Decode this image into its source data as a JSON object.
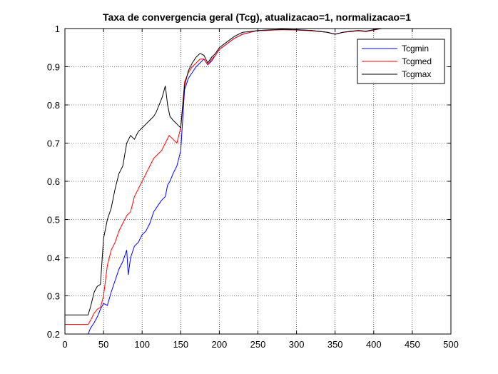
{
  "chart_data": {
    "type": "line",
    "title": "Taxa de convergencia geral (Tcg), atualizacao=1, normalizacao=1",
    "xlabel": "",
    "ylabel": "",
    "xlim": [
      0,
      500
    ],
    "ylim": [
      0.2,
      1
    ],
    "xticks": [
      0,
      50,
      100,
      150,
      200,
      250,
      300,
      350,
      400,
      450,
      500
    ],
    "yticks": [
      0.2,
      0.3,
      0.4,
      0.5,
      0.6,
      0.7,
      0.8,
      0.9,
      1
    ],
    "ytick_labels": [
      "0.2",
      "0.3",
      "0.4",
      "0.5",
      "0.6",
      "0.7",
      "0.8",
      "0.9",
      "1"
    ],
    "grid": "dotted",
    "legend_position": "top-right",
    "series": [
      {
        "name": "Tcgmin",
        "color": "#0000ff",
        "x": [
          0,
          30,
          33,
          38,
          42,
          46,
          50,
          55,
          60,
          65,
          70,
          75,
          80,
          82,
          85,
          90,
          95,
          100,
          105,
          110,
          115,
          120,
          125,
          130,
          133,
          136,
          140,
          145,
          150,
          155,
          160,
          165,
          170,
          175,
          180,
          185,
          190,
          195,
          200,
          210,
          220,
          230,
          240,
          250,
          260,
          280,
          300,
          320,
          340,
          350,
          360,
          370,
          380,
          390,
          400,
          410
        ],
        "y": [
          0.2,
          0.2,
          0.215,
          0.23,
          0.245,
          0.265,
          0.28,
          0.275,
          0.31,
          0.34,
          0.37,
          0.39,
          0.42,
          0.355,
          0.4,
          0.43,
          0.44,
          0.46,
          0.47,
          0.49,
          0.52,
          0.535,
          0.55,
          0.56,
          0.59,
          0.6,
          0.62,
          0.64,
          0.68,
          0.84,
          0.87,
          0.885,
          0.9,
          0.91,
          0.92,
          0.905,
          0.915,
          0.93,
          0.945,
          0.96,
          0.975,
          0.985,
          0.99,
          0.995,
          0.995,
          0.998,
          0.997,
          0.995,
          0.99,
          0.985,
          0.99,
          0.992,
          0.995,
          0.993,
          0.997,
          1.0
        ]
      },
      {
        "name": "Tcgmed",
        "color": "#ff0000",
        "x": [
          0,
          30,
          33,
          38,
          42,
          46,
          50,
          55,
          60,
          65,
          70,
          75,
          80,
          85,
          90,
          95,
          100,
          105,
          110,
          115,
          120,
          125,
          130,
          135,
          140,
          145,
          150,
          155,
          160,
          165,
          170,
          175,
          180,
          185,
          190,
          195,
          200,
          210,
          220,
          230,
          240,
          250,
          260,
          280,
          300,
          320,
          340,
          350,
          360,
          370,
          380,
          390,
          400,
          410
        ],
        "y": [
          0.225,
          0.225,
          0.235,
          0.255,
          0.265,
          0.27,
          0.3,
          0.38,
          0.42,
          0.44,
          0.47,
          0.49,
          0.51,
          0.52,
          0.56,
          0.58,
          0.6,
          0.62,
          0.64,
          0.66,
          0.67,
          0.68,
          0.7,
          0.72,
          0.71,
          0.7,
          0.74,
          0.86,
          0.885,
          0.9,
          0.91,
          0.92,
          0.92,
          0.905,
          0.92,
          0.93,
          0.945,
          0.96,
          0.975,
          0.985,
          0.99,
          0.995,
          0.995,
          0.997,
          0.996,
          0.994,
          0.99,
          0.985,
          0.99,
          0.992,
          0.994,
          0.992,
          0.996,
          1.0
        ]
      },
      {
        "name": "Tcgmax",
        "color": "#000000",
        "x": [
          0,
          30,
          33,
          38,
          42,
          46,
          50,
          55,
          60,
          65,
          70,
          75,
          80,
          85,
          90,
          95,
          100,
          105,
          110,
          115,
          118,
          122,
          126,
          130,
          133,
          136,
          140,
          145,
          150,
          155,
          160,
          165,
          170,
          175,
          180,
          185,
          190,
          195,
          200,
          210,
          220,
          230,
          240,
          250,
          260,
          280,
          300,
          320,
          340,
          350,
          360,
          370,
          380,
          390,
          400,
          410
        ],
        "y": [
          0.25,
          0.25,
          0.27,
          0.31,
          0.325,
          0.33,
          0.45,
          0.5,
          0.53,
          0.58,
          0.62,
          0.64,
          0.7,
          0.72,
          0.71,
          0.73,
          0.74,
          0.75,
          0.76,
          0.77,
          0.78,
          0.8,
          0.82,
          0.85,
          0.8,
          0.77,
          0.76,
          0.75,
          0.74,
          0.85,
          0.89,
          0.91,
          0.925,
          0.935,
          0.93,
          0.91,
          0.925,
          0.935,
          0.95,
          0.965,
          0.98,
          0.99,
          0.992,
          0.995,
          0.996,
          0.998,
          0.997,
          0.995,
          0.99,
          0.985,
          0.99,
          0.993,
          0.995,
          0.993,
          0.997,
          1.0
        ]
      }
    ]
  }
}
